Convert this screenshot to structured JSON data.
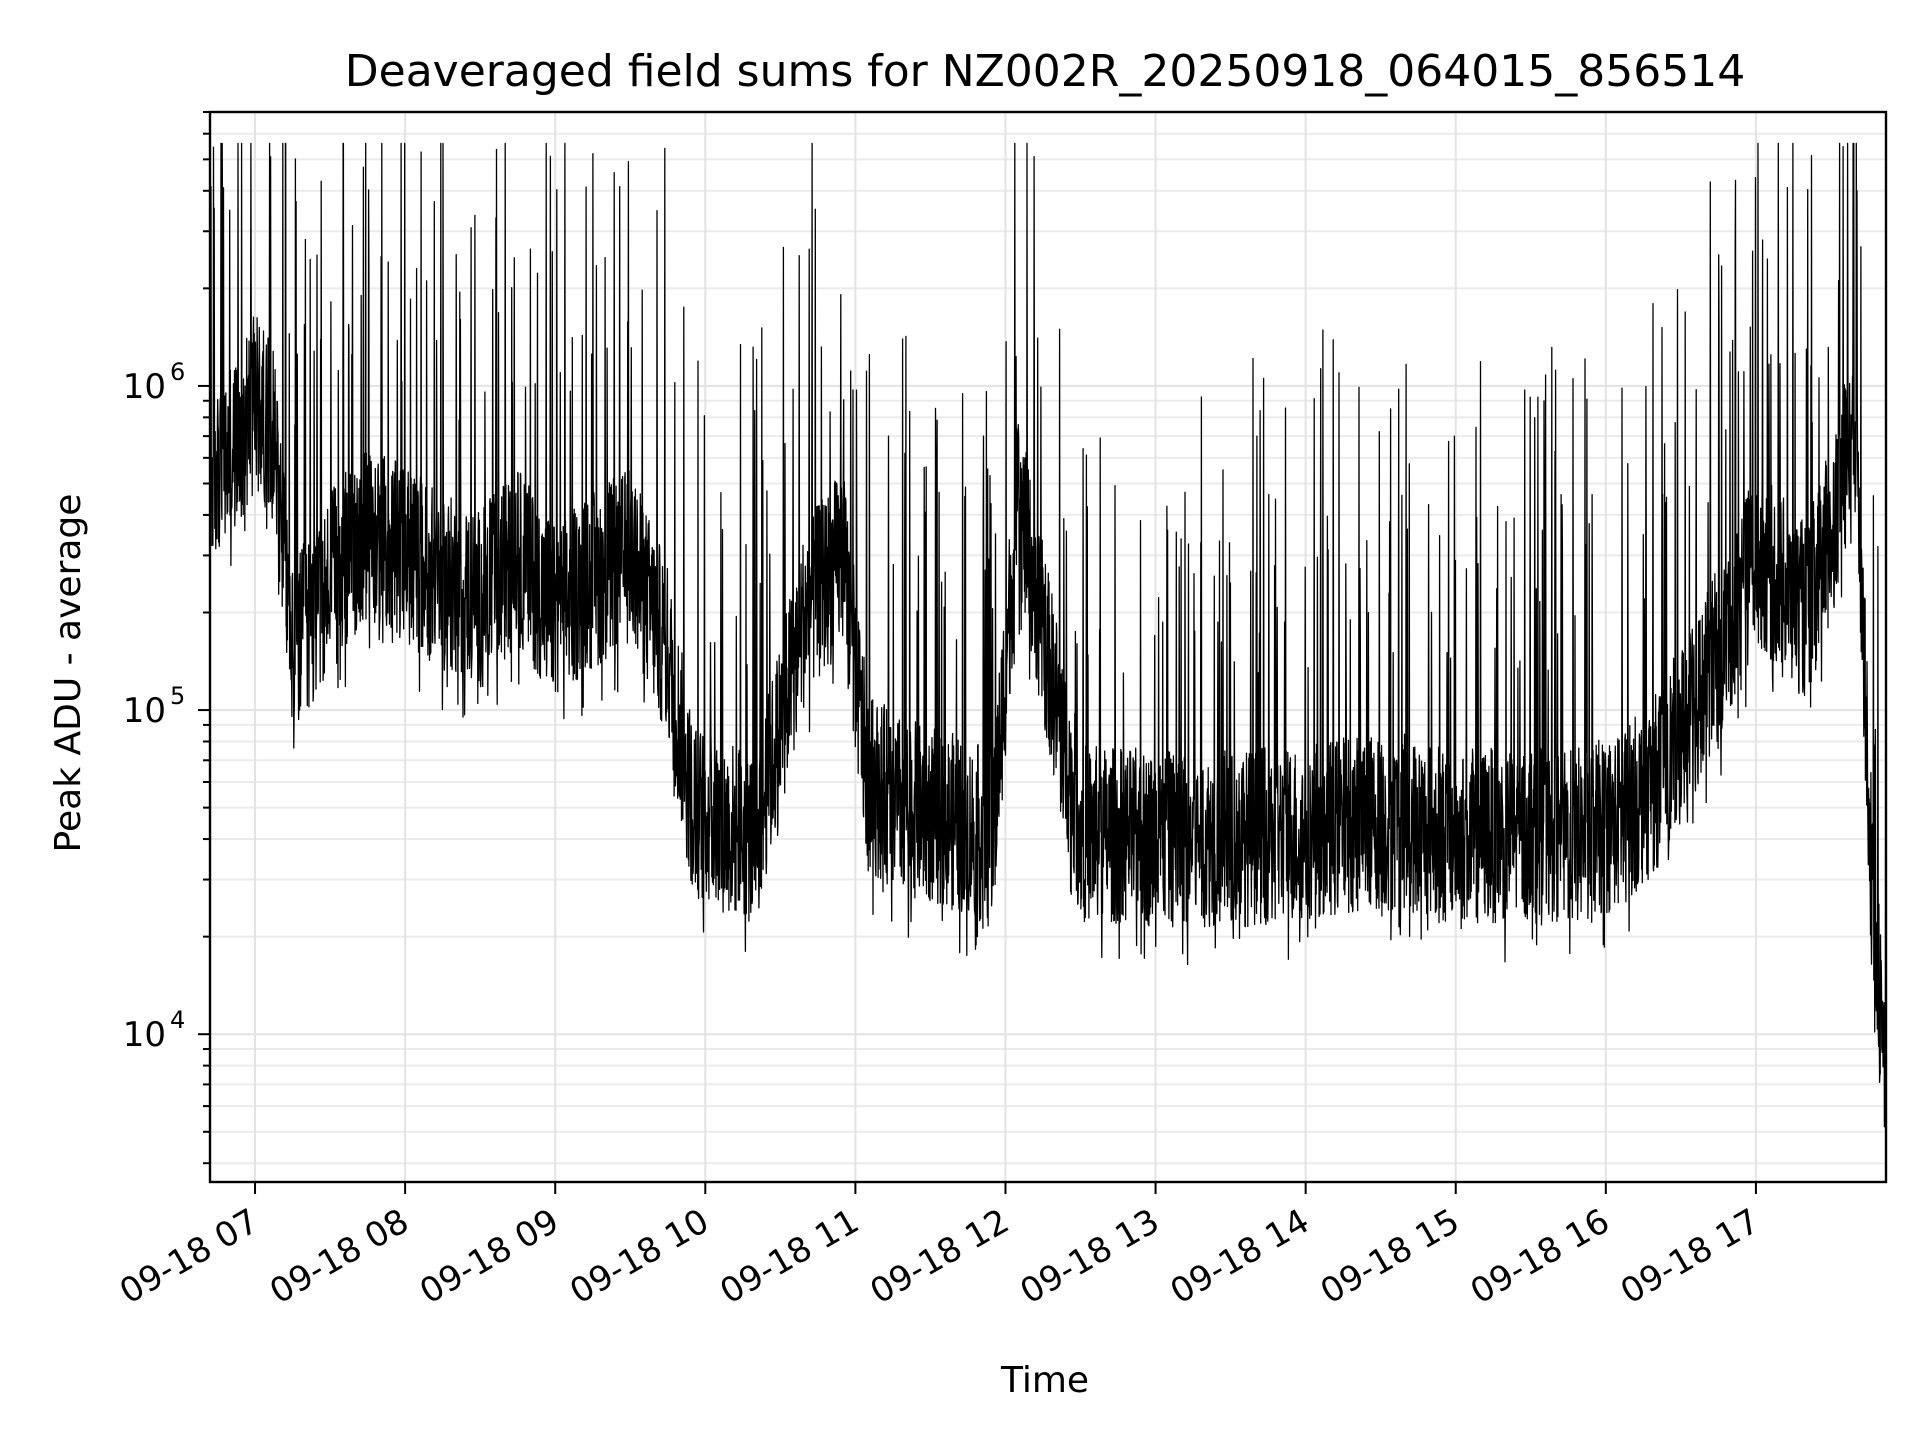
{
  "chart_data": {
    "type": "line",
    "title": "Deaveraged field sums for NZ002R_20250918_064015_856514",
    "xlabel": "Time",
    "ylabel": "Peak ADU - average",
    "yscale": "log",
    "grid": true,
    "ylim": [
      3500,
      7000000
    ],
    "xlim": [
      "09-18 06:42",
      "09-18 17:52"
    ],
    "x_ticks": [
      "09-18 07",
      "09-18 08",
      "09-18 09",
      "09-18 10",
      "09-18 11",
      "09-18 12",
      "09-18 13",
      "09-18 14",
      "09-18 15",
      "09-18 16",
      "09-18 17"
    ],
    "y_ticks": [
      {
        "value": 10000,
        "base": "10",
        "exp": "4"
      },
      {
        "value": 100000,
        "base": "10",
        "exp": "5"
      },
      {
        "value": 1000000,
        "base": "10",
        "exp": "6"
      }
    ],
    "series": [
      {
        "color": "#000000",
        "x": [
          "09-18 06:42",
          "09-18 06:50",
          "09-18 07:00",
          "09-18 07:08",
          "09-18 07:15",
          "09-18 07:30",
          "09-18 07:45",
          "09-18 08:00",
          "09-18 08:15",
          "09-18 08:30",
          "09-18 08:45",
          "09-18 09:00",
          "09-18 09:15",
          "09-18 09:30",
          "09-18 09:45",
          "09-18 09:55",
          "09-18 10:05",
          "09-18 10:20",
          "09-18 10:40",
          "09-18 10:55",
          "09-18 11:05",
          "09-18 11:20",
          "09-18 11:40",
          "09-18 11:55",
          "09-18 12:05",
          "09-18 12:30",
          "09-18 13:00",
          "09-18 13:30",
          "09-18 14:00",
          "09-18 14:20",
          "09-18 14:40",
          "09-18 15:00",
          "09-18 15:20",
          "09-18 15:45",
          "09-18 16:05",
          "09-18 16:20",
          "09-18 16:40",
          "09-18 17:00",
          "09-18 17:20",
          "09-18 17:30",
          "09-18 17:40",
          "09-18 17:47",
          "09-18 17:52"
        ],
        "y": [
          500000,
          600000,
          900000,
          700000,
          150000,
          250000,
          350000,
          300000,
          250000,
          220000,
          300000,
          200000,
          250000,
          300000,
          150000,
          50000,
          45000,
          40000,
          200000,
          300000,
          60000,
          50000,
          45000,
          40000,
          450000,
          42000,
          40000,
          40000,
          42000,
          45000,
          45000,
          40000,
          42000,
          40000,
          45000,
          60000,
          120000,
          300000,
          200000,
          350000,
          800000,
          20000,
          9000
        ]
      }
    ]
  }
}
